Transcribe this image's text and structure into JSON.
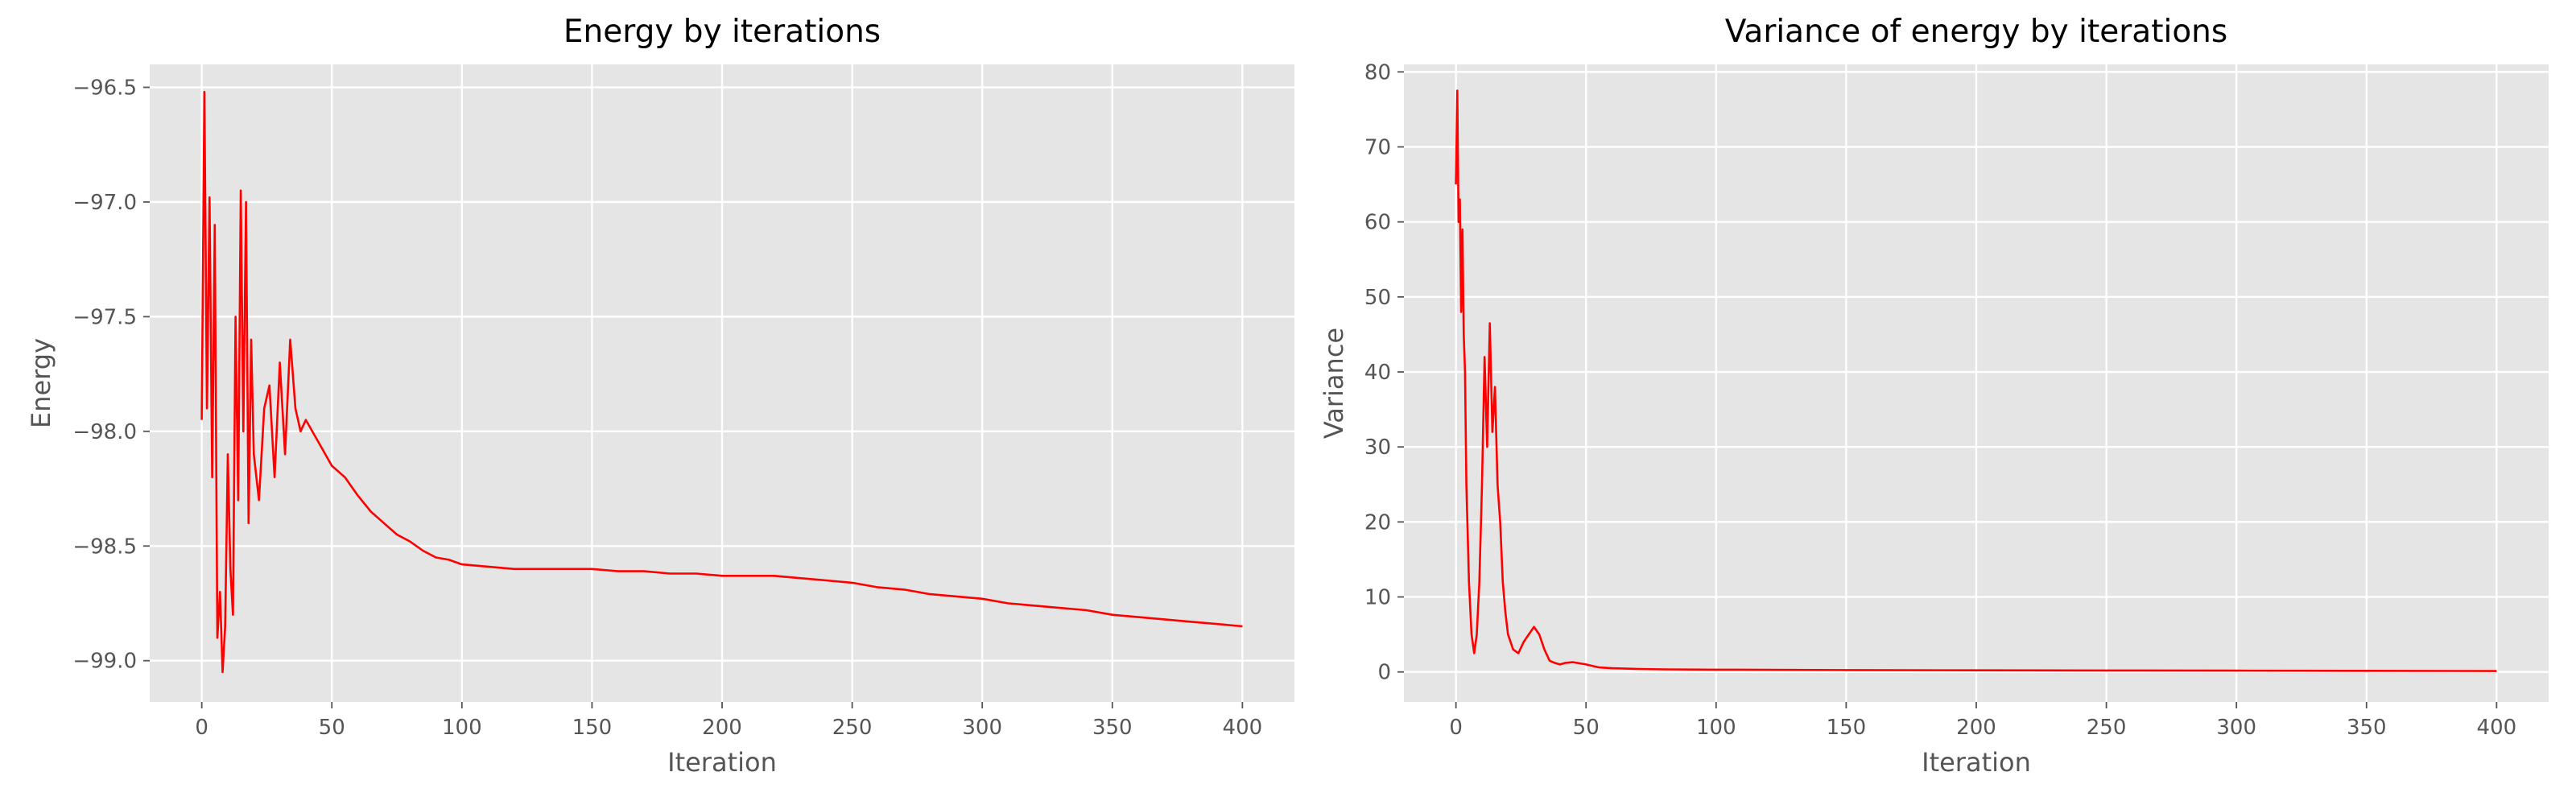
{
  "chart_data": [
    {
      "type": "line",
      "title": "Energy by iterations",
      "xlabel": "Iteration",
      "ylabel": "Energy",
      "xlim": [
        -20,
        420
      ],
      "ylim": [
        -99.18,
        -96.4
      ],
      "xticks": [
        0,
        50,
        100,
        150,
        200,
        250,
        300,
        350,
        400
      ],
      "yticks": [
        -99.0,
        -98.5,
        -98.0,
        -97.5,
        -97.0,
        -96.5
      ],
      "xtick_labels": [
        "0",
        "50",
        "100",
        "150",
        "200",
        "250",
        "300",
        "350",
        "400"
      ],
      "ytick_labels": [
        "−99.0",
        "−98.5",
        "−98.0",
        "−97.5",
        "−97.0",
        "−96.5"
      ],
      "grid": true,
      "series": [
        {
          "color": "#ff0000",
          "x": [
            0,
            1,
            2,
            3,
            4,
            5,
            6,
            7,
            8,
            9,
            10,
            11,
            12,
            13,
            14,
            15,
            16,
            17,
            18,
            19,
            20,
            22,
            24,
            26,
            28,
            30,
            32,
            34,
            36,
            38,
            40,
            45,
            50,
            55,
            60,
            65,
            70,
            75,
            80,
            85,
            90,
            95,
            100,
            110,
            120,
            130,
            140,
            150,
            160,
            170,
            180,
            190,
            200,
            210,
            220,
            230,
            240,
            250,
            260,
            270,
            280,
            290,
            300,
            310,
            320,
            330,
            340,
            350,
            360,
            370,
            380,
            390,
            400
          ],
          "y": [
            -97.95,
            -96.52,
            -97.9,
            -96.98,
            -98.2,
            -97.1,
            -98.9,
            -98.7,
            -99.05,
            -98.85,
            -98.1,
            -98.6,
            -98.8,
            -97.5,
            -98.3,
            -96.95,
            -98.0,
            -97.0,
            -98.4,
            -97.6,
            -98.1,
            -98.3,
            -97.9,
            -97.8,
            -98.2,
            -97.7,
            -98.1,
            -97.6,
            -97.9,
            -98.0,
            -97.95,
            -98.05,
            -98.15,
            -98.2,
            -98.28,
            -98.35,
            -98.4,
            -98.45,
            -98.48,
            -98.52,
            -98.55,
            -98.56,
            -98.58,
            -98.59,
            -98.6,
            -98.6,
            -98.6,
            -98.6,
            -98.61,
            -98.61,
            -98.62,
            -98.62,
            -98.63,
            -98.63,
            -98.63,
            -98.64,
            -98.65,
            -98.66,
            -98.68,
            -98.69,
            -98.71,
            -98.72,
            -98.73,
            -98.75,
            -98.76,
            -98.77,
            -98.78,
            -98.8,
            -98.81,
            -98.82,
            -98.83,
            -98.84,
            -98.85
          ]
        }
      ]
    },
    {
      "type": "line",
      "title": "Variance of energy by iterations",
      "xlabel": "Iteration",
      "ylabel": "Variance",
      "xlim": [
        -20,
        420
      ],
      "ylim": [
        -4,
        81
      ],
      "xticks": [
        0,
        50,
        100,
        150,
        200,
        250,
        300,
        350,
        400
      ],
      "yticks": [
        0,
        10,
        20,
        30,
        40,
        50,
        60,
        70,
        80
      ],
      "xtick_labels": [
        "0",
        "50",
        "100",
        "150",
        "200",
        "250",
        "300",
        "350",
        "400"
      ],
      "ytick_labels": [
        "0",
        "10",
        "20",
        "30",
        "40",
        "50",
        "60",
        "70",
        "80"
      ],
      "grid": true,
      "series": [
        {
          "color": "#ff0000",
          "x": [
            0,
            0.5,
            1,
            1.5,
            2,
            2.5,
            3,
            3.5,
            4,
            5,
            6,
            7,
            8,
            9,
            10,
            11,
            12,
            13,
            14,
            15,
            16,
            17,
            18,
            19,
            20,
            22,
            24,
            26,
            28,
            30,
            32,
            34,
            36,
            38,
            40,
            42,
            45,
            50,
            55,
            60,
            70,
            80,
            100,
            150,
            200,
            250,
            300,
            350,
            400
          ],
          "y": [
            65,
            77.5,
            60,
            63,
            48,
            59,
            45,
            40,
            25,
            12,
            5,
            2.5,
            5,
            12,
            25,
            42,
            30,
            46.5,
            32,
            38,
            25,
            20,
            12,
            8,
            5,
            3,
            2.5,
            4,
            5,
            6,
            5,
            3,
            1.5,
            1.2,
            1.0,
            1.2,
            1.3,
            1.0,
            0.6,
            0.5,
            0.4,
            0.35,
            0.3,
            0.25,
            0.22,
            0.2,
            0.18,
            0.15,
            0.12
          ]
        }
      ]
    }
  ]
}
